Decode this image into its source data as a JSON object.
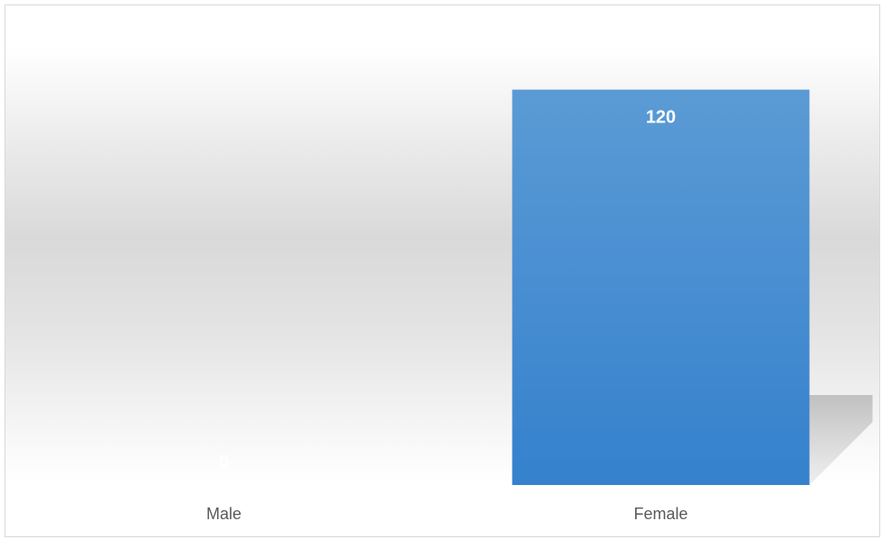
{
  "chart_data": {
    "type": "bar",
    "categories": [
      "Male",
      "Female"
    ],
    "values": [
      0,
      120
    ],
    "data_labels": [
      "0",
      "120"
    ],
    "ylim": [
      0,
      130
    ],
    "grid": false,
    "legend": "none",
    "colors": {
      "bar_top": "#5b9bd5",
      "bar_bottom": "#3581cd",
      "label": "#ffffff",
      "category_text": "#595959",
      "border": "#d9d9d9"
    }
  }
}
